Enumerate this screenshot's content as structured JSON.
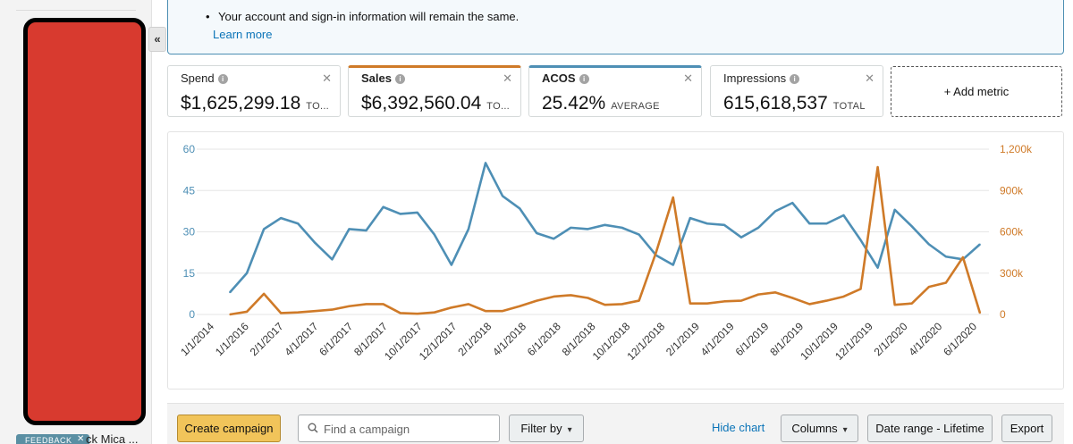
{
  "sidebar": {
    "collapse_glyph": "«",
    "feedback_label": "FEEDBACK",
    "feedback_close": "✕",
    "campaign_snippet": "ck Mica ..."
  },
  "alert": {
    "bullet_text": "Your account and sign-in information will remain the same.",
    "link_text": "Learn more"
  },
  "metrics": [
    {
      "label": "Spend",
      "value": "$1,625,299.18",
      "suffix": "TO...",
      "close": "✕"
    },
    {
      "label": "Sales",
      "value": "$6,392,560.04",
      "suffix": "TO...",
      "close": "✕"
    },
    {
      "label": "ACOS",
      "value": "25.42%",
      "suffix": "AVERAGE",
      "close": "✕"
    },
    {
      "label": "Impressions",
      "value": "615,618,537",
      "suffix": "TOTAL",
      "close": "✕"
    }
  ],
  "add_metric_label": "+ Add metric",
  "toolbar": {
    "create_label": "Create campaign",
    "search_placeholder": "Find a campaign",
    "filter_label": "Filter by",
    "hide_chart_label": "Hide chart",
    "columns_label": "Columns",
    "date_range_label": "Date range - Lifetime",
    "export_label": "Export"
  },
  "colors": {
    "acos_series": "#4e8fb5",
    "sales_series": "#cf7a28",
    "link": "#0b74b8",
    "primary_button": "#f1c45a"
  },
  "chart_data": {
    "type": "line",
    "left_axis": {
      "ticks": [
        0,
        15,
        30,
        45,
        60
      ],
      "tick_labels": [
        "0",
        "15",
        "30",
        "45",
        "60"
      ],
      "ylim": [
        0,
        60
      ]
    },
    "right_axis": {
      "ticks": [
        0,
        300000,
        600000,
        900000,
        1200000
      ],
      "tick_labels": [
        "0",
        "300k",
        "600k",
        "900k",
        "1,200k"
      ],
      "ylim": [
        0,
        1200000
      ]
    },
    "x_tick_labels": [
      "1/1/2014",
      "1/1/2016",
      "2/1/2017",
      "4/1/2017",
      "6/1/2017",
      "8/1/2017",
      "10/1/2017",
      "12/1/2017",
      "2/1/2018",
      "4/1/2018",
      "6/1/2018",
      "8/1/2018",
      "10/1/2018",
      "12/1/2018",
      "2/1/2019",
      "4/1/2019",
      "6/1/2019",
      "8/1/2019",
      "10/1/2019",
      "12/1/2019",
      "2/1/2020",
      "4/1/2020",
      "6/1/2020"
    ],
    "grid": true,
    "series": [
      {
        "axis": "left",
        "color": "#4e8fb5",
        "values": [
          8,
          15,
          31,
          35,
          33,
          26,
          20,
          31,
          30.5,
          39,
          36.5,
          37,
          29,
          18,
          31,
          55,
          43,
          38.5,
          29.5,
          27.5,
          31.5,
          31,
          32.5,
          31.5,
          29,
          21.5,
          18,
          35,
          33,
          32.5,
          28,
          31.5,
          37.5,
          40.5,
          33,
          33,
          36,
          27,
          17,
          38,
          32,
          25.5,
          21,
          20,
          25.5
        ]
      },
      {
        "axis": "right",
        "color": "#cf7a28",
        "values": [
          0,
          20000,
          150000,
          10000,
          15000,
          25000,
          35000,
          60000,
          75000,
          75000,
          10000,
          5000,
          15000,
          50000,
          75000,
          25000,
          25000,
          60000,
          100000,
          130000,
          140000,
          120000,
          70000,
          75000,
          100000,
          450000,
          850000,
          80000,
          80000,
          95000,
          100000,
          145000,
          160000,
          120000,
          75000,
          100000,
          130000,
          185000,
          1070000,
          70000,
          80000,
          200000,
          230000,
          415000,
          10000
        ]
      }
    ]
  }
}
